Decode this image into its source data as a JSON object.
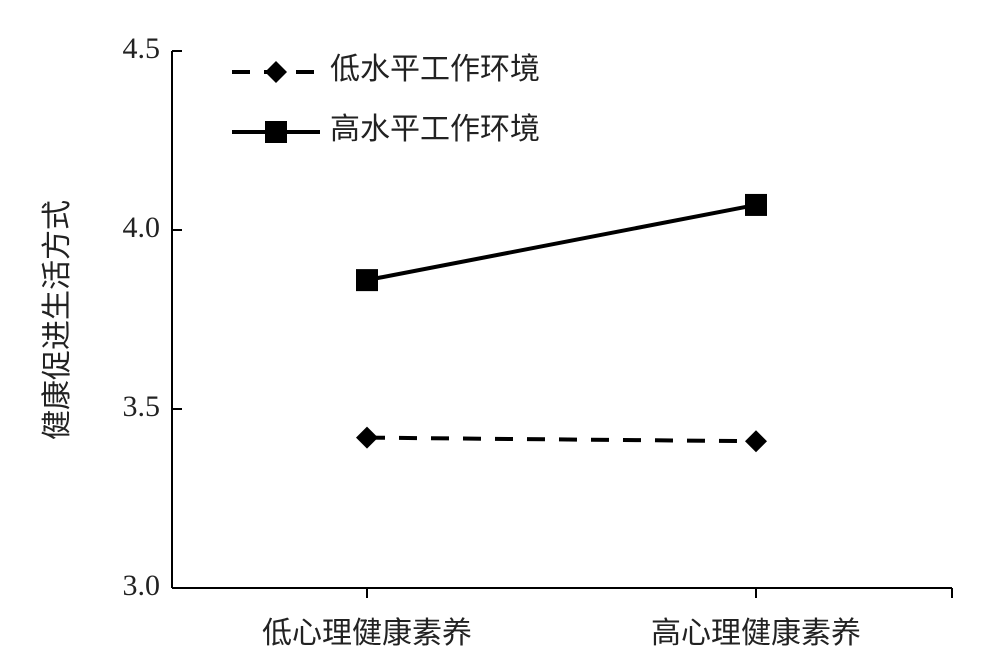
{
  "chart_data": {
    "type": "line",
    "y_label": "健康促进生活方式",
    "categories": [
      "低心理健康素养",
      "高心理健康素养"
    ],
    "series": [
      {
        "name": "低水平工作环境",
        "color": "#000000",
        "line_style": "dashed",
        "marker": "diamond",
        "values": [
          3.42,
          3.41
        ]
      },
      {
        "name": "高水平工作环境",
        "color": "#000000",
        "line_style": "solid",
        "marker": "square",
        "values": [
          3.86,
          4.07
        ]
      }
    ],
    "ylim": [
      3.0,
      4.5
    ],
    "yticks": [
      {
        "value": 3.0,
        "label": "3.0"
      },
      3.5,
      {
        "value": 4.0,
        "label": "4.0"
      },
      4.5
    ],
    "grid": false
  }
}
